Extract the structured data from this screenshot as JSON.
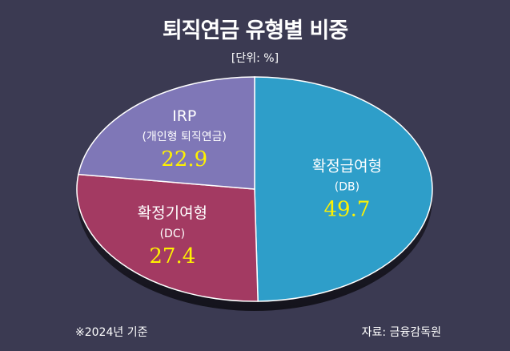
{
  "chart_data": {
    "type": "pie",
    "title": "퇴직연금 유형별 비중",
    "unit": "[단위: %]",
    "slices": [
      {
        "name": "확정급여형",
        "sub": "(DB)",
        "value": 49.7,
        "value_label": "49.7",
        "color": "#2e9ec9"
      },
      {
        "name": "확정기여형",
        "sub": "(DC)",
        "value": 27.4,
        "value_label": "27.4",
        "color": "#a33a62"
      },
      {
        "name": "IRP",
        "sub": "(개인형 퇴직연금)",
        "value": 22.9,
        "value_label": "22.9",
        "color": "#7f77b7"
      }
    ]
  },
  "footnote": "※2024년 기준",
  "source": "자료: 금융감독원"
}
